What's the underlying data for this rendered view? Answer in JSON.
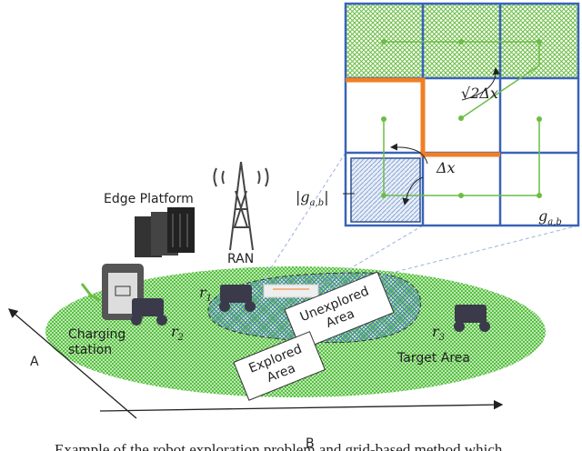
{
  "labels": {
    "edge_platform": "Edge Platform",
    "ran": "RAN",
    "r1": {
      "base": "r",
      "sub": "1"
    },
    "r2": {
      "base": "r",
      "sub": "2"
    },
    "r3": {
      "base": "r",
      "sub": "3"
    },
    "charging": [
      "Charging",
      "station"
    ],
    "unexplored": [
      "Unexplored",
      "Area"
    ],
    "explored": [
      "Explored",
      "Area"
    ],
    "target": "Target Area",
    "axis_a": "A",
    "axis_b": "B",
    "sqrt2dx": "√2Δx",
    "dx": "Δx",
    "g_abs": {
      "open": "|g",
      "sub": "a,b",
      "close": "|"
    },
    "g": {
      "base": "g",
      "sub": "a,b"
    }
  },
  "caption": "Example of the robot exploration problem and grid-based method which"
}
